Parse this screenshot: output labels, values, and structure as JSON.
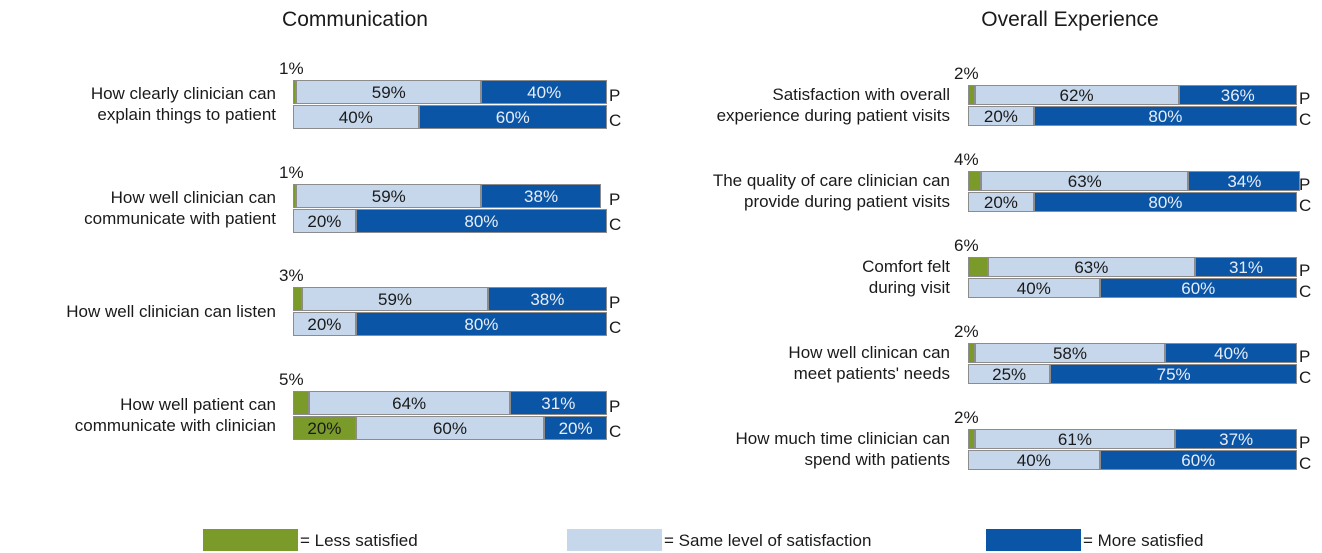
{
  "chart_data": [
    {
      "type": "bar",
      "stacked": true,
      "orientation": "horizontal",
      "title": "Communication",
      "xlim": [
        0,
        100
      ],
      "row_labels": [
        "P",
        "C"
      ],
      "categories": [
        "How clearly clinician can\nexplain things to patient",
        "How well clinician can\ncommunicate with patient",
        "How well clinician can listen",
        "How well patient can\ncommunicate with clinician"
      ],
      "series": [
        {
          "name": "= Less satisfied",
          "color": "#7a9a2a",
          "values": [
            [
              1,
              0
            ],
            [
              1,
              0
            ],
            [
              3,
              0
            ],
            [
              5,
              20
            ]
          ],
          "value_labels": [
            [
              "1%",
              null
            ],
            [
              "1%",
              null
            ],
            [
              "3%",
              null
            ],
            [
              "5%",
              "20%"
            ]
          ]
        },
        {
          "name": "= Same level of satisfaction",
          "color": "#c6d7eb",
          "values": [
            [
              59,
              40
            ],
            [
              59,
              20
            ],
            [
              59,
              20
            ],
            [
              64,
              60
            ]
          ],
          "value_labels": [
            [
              "59%",
              "40%"
            ],
            [
              "59%",
              "20%"
            ],
            [
              "59%",
              "20%"
            ],
            [
              "64%",
              "60%"
            ]
          ]
        },
        {
          "name": "= More satisfied",
          "color": "#0b55a6",
          "values": [
            [
              40,
              60
            ],
            [
              38,
              80
            ],
            [
              38,
              80
            ],
            [
              31,
              20
            ]
          ],
          "value_labels": [
            [
              "40%",
              "60%"
            ],
            [
              "38%",
              "80%"
            ],
            [
              "38%",
              "80%"
            ],
            [
              "31%",
              "20%"
            ]
          ]
        }
      ]
    },
    {
      "type": "bar",
      "stacked": true,
      "orientation": "horizontal",
      "title": "Overall Experience",
      "xlim": [
        0,
        100
      ],
      "row_labels": [
        "P",
        "C"
      ],
      "categories": [
        "Satisfaction with overall\nexperience during patient visits",
        "The quality of care clinician can\nprovide during patient visits",
        "Comfort felt\nduring visit",
        "How well clinican can\nmeet patients' needs",
        "How much time clinician can\nspend with patients"
      ],
      "series": [
        {
          "name": "= Less satisfied",
          "color": "#7a9a2a",
          "values": [
            [
              2,
              0
            ],
            [
              4,
              0
            ],
            [
              6,
              0
            ],
            [
              2,
              0
            ],
            [
              2,
              0
            ]
          ],
          "value_labels": [
            [
              "2%",
              null
            ],
            [
              "4%",
              null
            ],
            [
              "6%",
              null
            ],
            [
              "2%",
              null
            ],
            [
              "2%",
              null
            ]
          ]
        },
        {
          "name": "= Same level of satisfaction",
          "color": "#c6d7eb",
          "values": [
            [
              62,
              20
            ],
            [
              63,
              20
            ],
            [
              63,
              40
            ],
            [
              58,
              25
            ],
            [
              61,
              40
            ]
          ],
          "value_labels": [
            [
              "62%",
              "20%"
            ],
            [
              "63%",
              "20%"
            ],
            [
              "63%",
              "40%"
            ],
            [
              "58%",
              "25%"
            ],
            [
              "61%",
              "40%"
            ]
          ]
        },
        {
          "name": "= More satisfied",
          "color": "#0b55a6",
          "values": [
            [
              36,
              80
            ],
            [
              34,
              80
            ],
            [
              31,
              60
            ],
            [
              40,
              75
            ],
            [
              37,
              60
            ]
          ],
          "value_labels": [
            [
              "36%",
              "80%"
            ],
            [
              "34%",
              "80%"
            ],
            [
              "31%",
              "60%"
            ],
            [
              "40%",
              "75%"
            ],
            [
              "37%",
              "60%"
            ]
          ]
        }
      ]
    }
  ]
}
